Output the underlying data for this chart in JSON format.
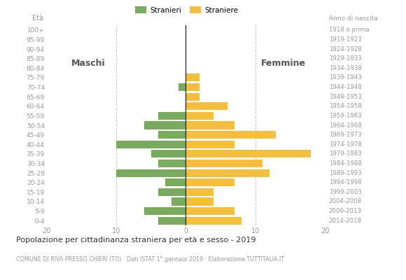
{
  "age_groups": [
    "0-4",
    "5-9",
    "10-14",
    "15-19",
    "20-24",
    "25-29",
    "30-34",
    "35-39",
    "40-44",
    "45-49",
    "50-54",
    "55-59",
    "60-64",
    "65-69",
    "70-74",
    "75-79",
    "80-84",
    "85-89",
    "90-94",
    "95-99",
    "100+"
  ],
  "birth_years": [
    "2014-2018",
    "2009-2013",
    "2004-2008",
    "1999-2003",
    "1994-1998",
    "1989-1993",
    "1984-1988",
    "1979-1983",
    "1974-1978",
    "1969-1973",
    "1964-1968",
    "1959-1963",
    "1954-1958",
    "1949-1953",
    "1944-1948",
    "1939-1943",
    "1934-1938",
    "1929-1933",
    "1924-1928",
    "1919-1923",
    "1918 o prima"
  ],
  "males": [
    4,
    6,
    2,
    4,
    3,
    10,
    4,
    5,
    10,
    4,
    6,
    4,
    0,
    0,
    1,
    0,
    0,
    0,
    0,
    0,
    0
  ],
  "females": [
    8,
    7,
    4,
    4,
    7,
    12,
    11,
    18,
    7,
    13,
    7,
    4,
    6,
    2,
    2,
    2,
    0,
    0,
    0,
    0,
    0
  ],
  "male_color": "#7aaa5e",
  "female_color": "#f5be3c",
  "title": "Popolazione per cittadinanza straniera per età e sesso - 2019",
  "subtitle": "COMUNE DI RIVA PRESSO CHIERI (TO) · Dati ISTAT 1° gennaio 2019 · Elaborazione TUTTITALIA.IT",
  "legend_male": "Stranieri",
  "legend_female": "Straniere",
  "label_eta": "Età",
  "label_maschi": "Maschi",
  "label_femmine": "Femmine",
  "label_anno": "Anno di nascita",
  "xlim": 20,
  "background_color": "#ffffff",
  "bar_height": 0.82
}
